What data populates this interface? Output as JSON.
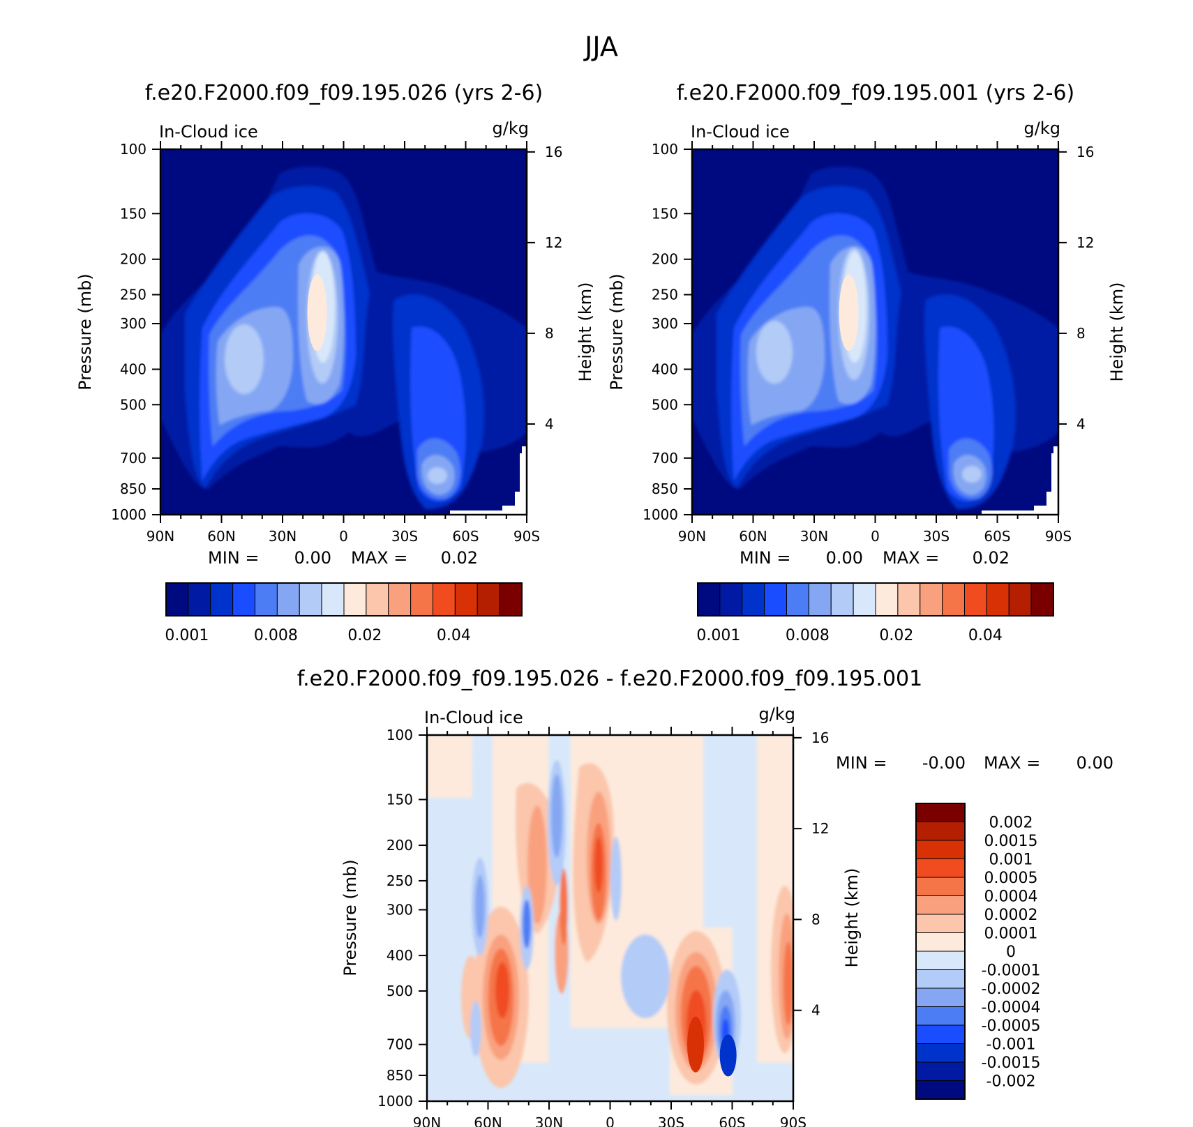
{
  "figure": {
    "title": "JJA"
  },
  "colors": {
    "seq16": [
      "#000a80",
      "#001aa4",
      "#0033cc",
      "#1a4dff",
      "#4d7df4",
      "#85a7f3",
      "#b3cbf7",
      "#d8e8fa",
      "#fdeadc",
      "#fbc6ac",
      "#f9a17f",
      "#f57548",
      "#f04c20",
      "#d93106",
      "#b41e01",
      "#7a0000"
    ],
    "div16": [
      "#000a80",
      "#001aa4",
      "#0033cc",
      "#1a4dff",
      "#4d7df4",
      "#85a7f3",
      "#b3cbf7",
      "#d8e8fa",
      "#fdeadc",
      "#fbc6ac",
      "#f9a17f",
      "#f57548",
      "#f04c20",
      "#d93106",
      "#b41e01",
      "#7a0000"
    ]
  },
  "chart_data": [
    {
      "type": "heatmap",
      "title": "f.e20.F2000.f09_f09.195.026 (yrs 2-6)",
      "variable": "In-Cloud ice",
      "units": "g/kg",
      "ylabel": "Pressure (mb)",
      "ylabel_right": "Height (km)",
      "x_ticks": [
        "90N",
        "60N",
        "30N",
        "0",
        "30S",
        "60S",
        "90S"
      ],
      "xlim": [
        90,
        -90
      ],
      "y_ticks": [
        100,
        150,
        200,
        250,
        300,
        400,
        500,
        700,
        850,
        1000
      ],
      "ylim": [
        1000,
        100
      ],
      "height_ticks": [
        4,
        8,
        12,
        16
      ],
      "min_label": "MIN =",
      "min_value": "0.00",
      "max_label": "MAX =",
      "max_value": "0.02",
      "colorbar_labels": [
        "0.001",
        "0.008",
        "0.02",
        "0.04"
      ],
      "features": [
        {
          "lat": 13,
          "p": 280,
          "value": 0.02
        },
        {
          "lat": 48,
          "p": 400,
          "value": 0.01
        },
        {
          "lat": -55,
          "p": 780,
          "value": 0.008
        }
      ]
    },
    {
      "type": "heatmap",
      "title": "f.e20.F2000.f09_f09.195.001 (yrs 2-6)",
      "variable": "In-Cloud ice",
      "units": "g/kg",
      "ylabel": "Pressure (mb)",
      "ylabel_right": "Height (km)",
      "x_ticks": [
        "90N",
        "60N",
        "30N",
        "0",
        "30S",
        "60S",
        "90S"
      ],
      "xlim": [
        90,
        -90
      ],
      "y_ticks": [
        100,
        150,
        200,
        250,
        300,
        400,
        500,
        700,
        850,
        1000
      ],
      "ylim": [
        1000,
        100
      ],
      "height_ticks": [
        4,
        8,
        12,
        16
      ],
      "min_label": "MIN =",
      "min_value": "0.00",
      "max_label": "MAX =",
      "max_value": "0.02",
      "colorbar_labels": [
        "0.001",
        "0.008",
        "0.02",
        "0.04"
      ],
      "features": [
        {
          "lat": 13,
          "p": 280,
          "value": 0.02
        },
        {
          "lat": 50,
          "p": 380,
          "value": 0.01
        },
        {
          "lat": -50,
          "p": 780,
          "value": 0.008
        }
      ]
    },
    {
      "type": "heatmap",
      "title": "f.e20.F2000.f09_f09.195.026 - f.e20.F2000.f09_f09.195.001",
      "variable": "In-Cloud ice",
      "units": "g/kg",
      "ylabel": "Pressure (mb)",
      "ylabel_right": "Height (km)",
      "x_ticks": [
        "90N",
        "60N",
        "30N",
        "0",
        "30S",
        "60S",
        "90S"
      ],
      "xlim": [
        90,
        -90
      ],
      "y_ticks": [
        100,
        150,
        200,
        250,
        300,
        400,
        500,
        700,
        850,
        1000
      ],
      "ylim": [
        1000,
        100
      ],
      "height_ticks": [
        4,
        8,
        12,
        16
      ],
      "min_label": "MIN =",
      "min_value": "-0.00",
      "max_label": "MAX =",
      "max_value": "0.00",
      "colorbar_labels": [
        "0.002",
        "0.0015",
        "0.001",
        "0.0005",
        "0.0004",
        "0.0002",
        "0.0001",
        "0",
        "-0.0001",
        "-0.0002",
        "-0.0004",
        "-0.0005",
        "-0.001",
        "-0.0015",
        "-0.002"
      ],
      "features": [
        {
          "lat": 53,
          "p": 480,
          "value": 0.001
        },
        {
          "lat": 4,
          "p": 250,
          "value": 0.001
        },
        {
          "lat": -42,
          "p": 700,
          "value": 0.0015
        },
        {
          "lat": -58,
          "p": 750,
          "value": -0.001
        },
        {
          "lat": -87,
          "p": 450,
          "value": 0.0005
        }
      ]
    }
  ]
}
